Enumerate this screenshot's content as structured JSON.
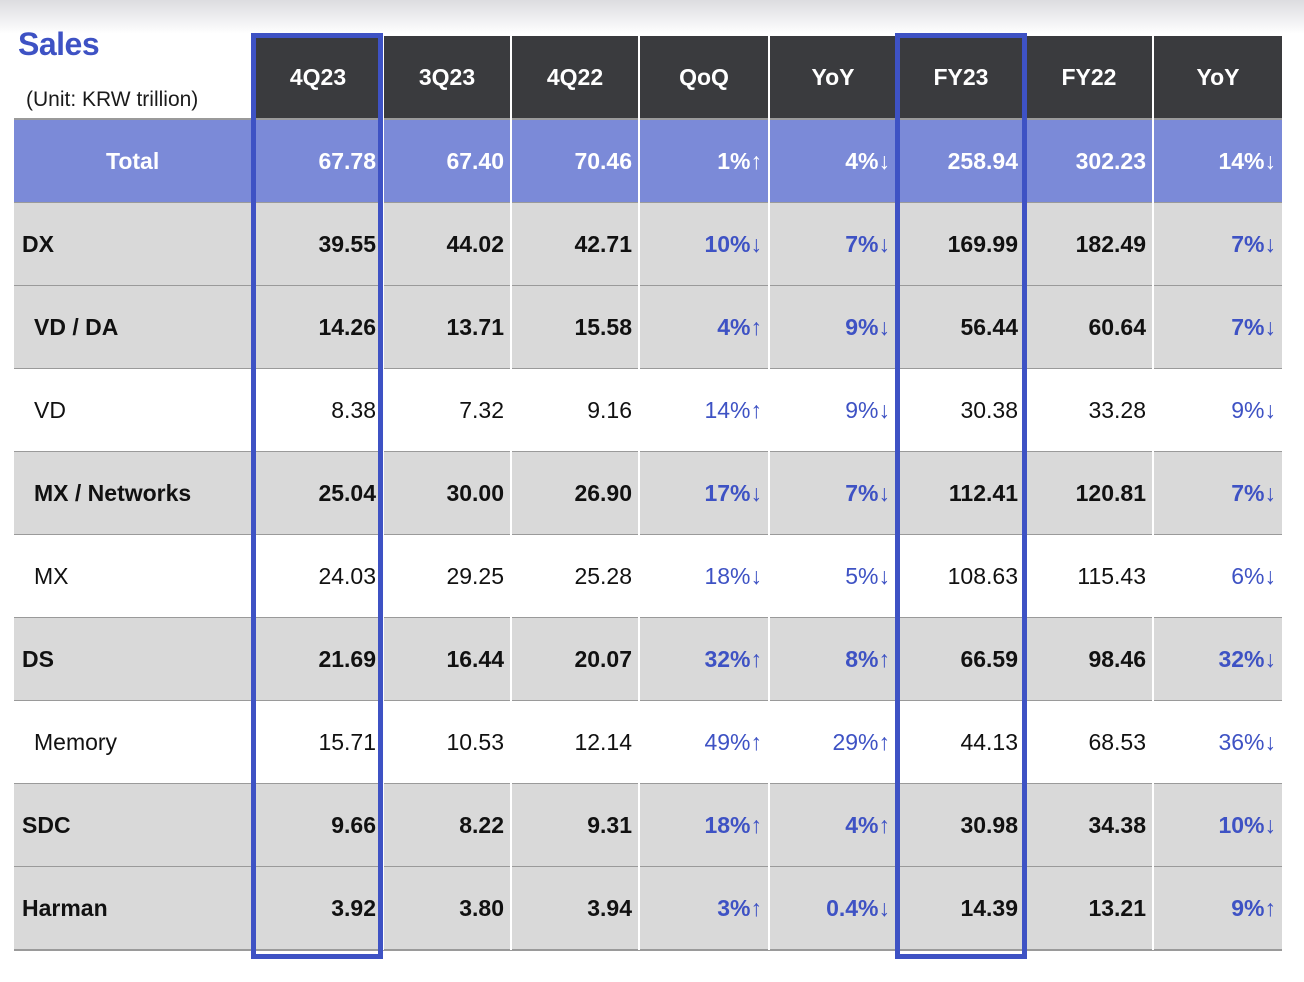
{
  "title": "Sales",
  "unit": "(Unit: KRW trillion)",
  "columns": [
    "4Q23",
    "3Q23",
    "4Q22",
    "QoQ",
    "YoY",
    "FY23",
    "FY22",
    "YoY"
  ],
  "rows": [
    {
      "label": "Total",
      "values": [
        "67.78",
        "67.40",
        "70.46",
        "1%↑",
        "4%↓",
        "258.94",
        "302.23",
        "14%↓"
      ]
    },
    {
      "label": "DX",
      "values": [
        "39.55",
        "44.02",
        "42.71",
        "10%↓",
        "7%↓",
        "169.99",
        "182.49",
        "7%↓"
      ]
    },
    {
      "label": "VD / DA",
      "values": [
        "14.26",
        "13.71",
        "15.58",
        "4%↑",
        "9%↓",
        "56.44",
        "60.64",
        "7%↓"
      ]
    },
    {
      "label": "VD",
      "values": [
        "8.38",
        "7.32",
        "9.16",
        "14%↑",
        "9%↓",
        "30.38",
        "33.28",
        "9%↓"
      ]
    },
    {
      "label": "MX / Networks",
      "values": [
        "25.04",
        "30.00",
        "26.90",
        "17%↓",
        "7%↓",
        "112.41",
        "120.81",
        "7%↓"
      ]
    },
    {
      "label": "MX",
      "values": [
        "24.03",
        "29.25",
        "25.28",
        "18%↓",
        "5%↓",
        "108.63",
        "115.43",
        "6%↓"
      ]
    },
    {
      "label": "DS",
      "values": [
        "21.69",
        "16.44",
        "20.07",
        "32%↑",
        "8%↑",
        "66.59",
        "98.46",
        "32%↓"
      ]
    },
    {
      "label": "Memory",
      "values": [
        "15.71",
        "10.53",
        "12.14",
        "49%↑",
        "29%↑",
        "44.13",
        "68.53",
        "36%↓"
      ]
    },
    {
      "label": "SDC",
      "values": [
        "9.66",
        "8.22",
        "9.31",
        "18%↑",
        "4%↑",
        "30.98",
        "34.38",
        "10%↓"
      ]
    },
    {
      "label": "Harman",
      "values": [
        "3.92",
        "3.80",
        "3.94",
        "3%↑",
        "0.4%↓",
        "14.39",
        "13.21",
        "9%↑"
      ]
    }
  ],
  "colors": {
    "accent": "#3e52c4",
    "header_bg": "#3a3b3e",
    "total_bg": "#7b8ad8",
    "row_gray": "#d9d9d9"
  }
}
